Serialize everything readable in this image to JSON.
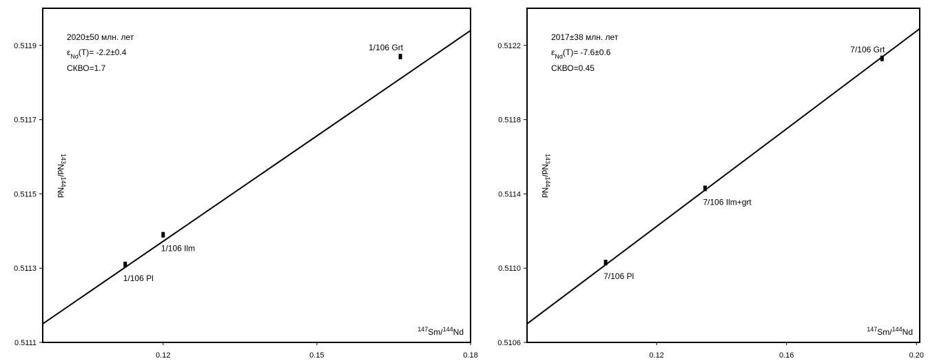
{
  "chart_data": [
    {
      "type": "scatter",
      "title": "2020±50 млн. лет",
      "subtitle": [
        {
          "text": "ε"
        },
        {
          "text": "Nd",
          "sub": true
        },
        {
          "text": "(T)= -2.2±0.4"
        }
      ],
      "annotation": "СКВО=1.7",
      "xlabel": [
        {
          "text": "147",
          "sup": true
        },
        {
          "text": "Sm/"
        },
        {
          "text": "144",
          "sup": true
        },
        {
          "text": "Nd"
        }
      ],
      "ylabel": [
        {
          "text": "143",
          "sup": true
        },
        {
          "text": "Nd/"
        },
        {
          "text": "144",
          "sup": true
        },
        {
          "text": "Nd"
        }
      ],
      "labels": [
        "1/106 Pl",
        "1/106 Ilm",
        "1/106 Grt"
      ],
      "x": [
        0.1126,
        0.12,
        0.1663
      ],
      "values": [
        0.51131,
        0.51139,
        0.51187
      ],
      "line": {
        "x": [
          0.0965,
          0.18
        ],
        "y": [
          0.51115,
          0.51194
        ]
      },
      "color": "#000000",
      "xlim": [
        0.0965,
        0.18
      ],
      "xticks": [
        0.12,
        0.15,
        0.18
      ],
      "ylim": [
        0.5111,
        0.512
      ],
      "yticks": [
        0.5111,
        0.5113,
        0.5115,
        0.5117,
        0.5119
      ]
    },
    {
      "type": "scatter",
      "title": "2017±38 млн. лет",
      "subtitle": [
        {
          "text": "ε"
        },
        {
          "text": "Nd",
          "sub": true
        },
        {
          "text": "(T)= -7.6±0.6"
        }
      ],
      "annotation": "СКВО=0.45",
      "xlabel": [
        {
          "text": "147",
          "sup": true
        },
        {
          "text": "Sm/"
        },
        {
          "text": "144",
          "sup": true
        },
        {
          "text": "Nd"
        }
      ],
      "ylabel": [
        {
          "text": "143",
          "sup": true
        },
        {
          "text": "Nd/"
        },
        {
          "text": "144",
          "sup": true
        },
        {
          "text": "Nd"
        }
      ],
      "labels": [
        "7/106 Pl",
        "7/106 Ilm+grt",
        "7/106 Grt"
      ],
      "x": [
        0.1043,
        0.1349,
        0.1894
      ],
      "values": [
        0.51103,
        0.51143,
        0.51213
      ],
      "line": {
        "x": [
          0.0801,
          0.201
        ],
        "y": [
          0.5107,
          0.51229
        ]
      },
      "color": "#000000",
      "xlim": [
        0.0801,
        0.201
      ],
      "xticks": [
        0.12,
        0.16,
        {
          "value": 0.2,
          "label": "0.20"
        }
      ],
      "ylim": [
        0.5106,
        0.5124
      ],
      "yticks": [
        0.5106,
        {
          "value": 0.511,
          "label": "0.5110"
        },
        0.5114,
        0.5118,
        0.5122
      ]
    }
  ]
}
